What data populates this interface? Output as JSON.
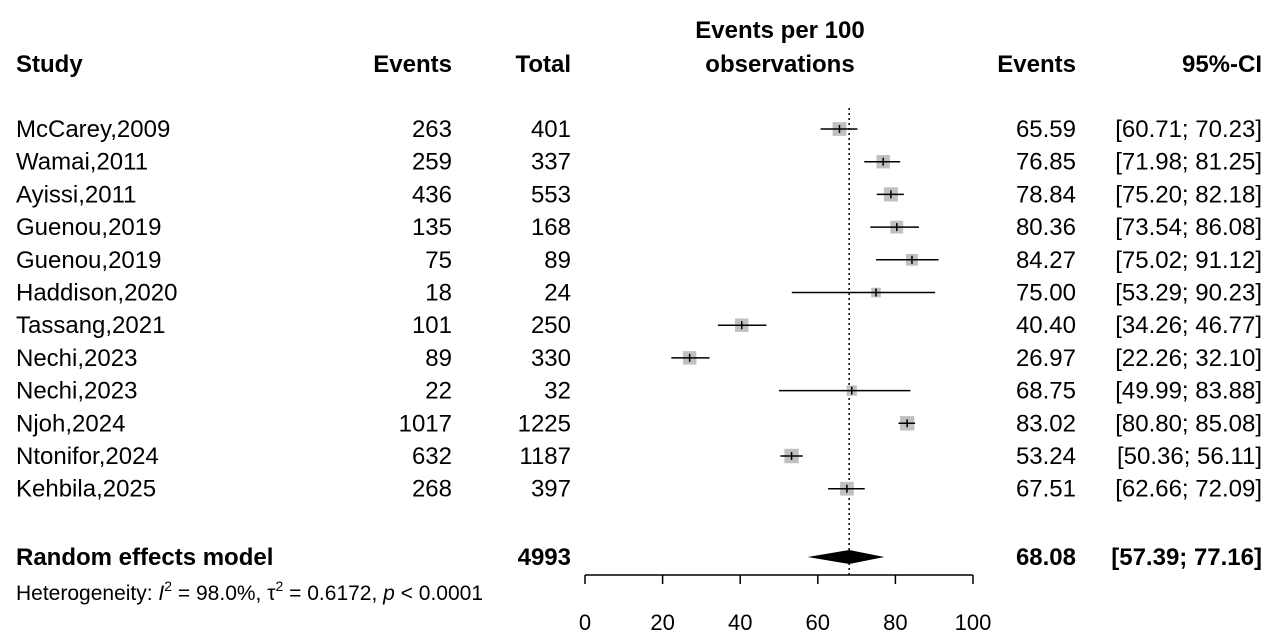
{
  "chart_data": {
    "type": "forest",
    "headers": {
      "study": "Study",
      "events": "Events",
      "total": "Total",
      "plot_line1": "Events per 100",
      "plot_line2": "observations",
      "events_right": "Events",
      "ci": "95%-CI"
    },
    "studies": [
      {
        "name": "McCarey,2009",
        "events": "263",
        "total": "401",
        "est": 65.59,
        "lo": 60.71,
        "hi": 70.23,
        "est_label": "65.59",
        "ci_label": "[60.71; 70.23]",
        "weight": 0.86
      },
      {
        "name": "Wamai,2011",
        "events": "259",
        "total": "337",
        "est": 76.85,
        "lo": 71.98,
        "hi": 81.25,
        "est_label": "76.85",
        "ci_label": "[71.98; 81.25]",
        "weight": 0.84
      },
      {
        "name": "Ayissi,2011",
        "events": "436",
        "total": "553",
        "est": 78.84,
        "lo": 75.2,
        "hi": 82.18,
        "est_label": "78.84",
        "ci_label": "[75.20; 82.18]",
        "weight": 0.88
      },
      {
        "name": "Guenou,2019",
        "events": "135",
        "total": "168",
        "est": 80.36,
        "lo": 73.54,
        "hi": 86.08,
        "est_label": "80.36",
        "ci_label": "[73.54; 86.08]",
        "weight": 0.8
      },
      {
        "name": "Guenou,2019",
        "events": "75",
        "total": "89",
        "est": 84.27,
        "lo": 75.02,
        "hi": 91.12,
        "est_label": "84.27",
        "ci_label": "[75.02; 91.12]",
        "weight": 0.74
      },
      {
        "name": "Haddison,2020",
        "events": "18",
        "total": "24",
        "est": 75.0,
        "lo": 53.29,
        "hi": 90.23,
        "est_label": "75.00",
        "ci_label": "[53.29; 90.23]",
        "weight": 0.6
      },
      {
        "name": "Tassang,2021",
        "events": "101",
        "total": "250",
        "est": 40.4,
        "lo": 34.26,
        "hi": 46.77,
        "est_label": "40.40",
        "ci_label": "[34.26; 46.77]",
        "weight": 0.84
      },
      {
        "name": "Nechi,2023",
        "events": "89",
        "total": "330",
        "est": 26.97,
        "lo": 22.26,
        "hi": 32.1,
        "est_label": "26.97",
        "ci_label": "[22.26; 32.10]",
        "weight": 0.84
      },
      {
        "name": "Nechi,2023",
        "events": "22",
        "total": "32",
        "est": 68.75,
        "lo": 49.99,
        "hi": 83.88,
        "est_label": "68.75",
        "ci_label": "[49.99; 83.88]",
        "weight": 0.64
      },
      {
        "name": "Njoh,2024",
        "events": "1017",
        "total": "1225",
        "est": 83.02,
        "lo": 80.8,
        "hi": 85.08,
        "est_label": "83.02",
        "ci_label": "[80.80; 85.08]",
        "weight": 0.9
      },
      {
        "name": "Ntonifor,2024",
        "events": "632",
        "total": "1187",
        "est": 53.24,
        "lo": 50.36,
        "hi": 56.11,
        "est_label": "53.24",
        "ci_label": "[50.36; 56.11]",
        "weight": 0.9
      },
      {
        "name": "Kehbila,2025",
        "events": "268",
        "total": "397",
        "est": 67.51,
        "lo": 62.66,
        "hi": 72.09,
        "est_label": "67.51",
        "ci_label": "[62.66; 72.09]",
        "weight": 0.86
      }
    ],
    "pooled": {
      "name": "Random effects model",
      "total": "4993",
      "est": 68.08,
      "lo": 57.39,
      "hi": 77.16,
      "est_label": "68.08",
      "ci_label": "[57.39; 77.16]"
    },
    "heterogeneity": {
      "prefix": "Heterogeneity: ",
      "i2_label": "I",
      "i2_sup": "2",
      "i2_value": " = 98.0%, ",
      "tau_label": "τ",
      "tau_sup": "2",
      "tau_value": " = 0.6172, ",
      "p_label": "p",
      "p_value": " < 0.0001"
    },
    "x_axis": {
      "range": [
        0,
        100
      ],
      "ticks": [
        0,
        20,
        40,
        60,
        80,
        100
      ],
      "tick_labels": [
        "0",
        "20",
        "40",
        "60",
        "80",
        "100"
      ]
    },
    "reference_line": 68.08,
    "colors": {
      "square": "#c0c0c0",
      "line": "#000000",
      "diamond": "#000000",
      "text": "#000000"
    }
  }
}
